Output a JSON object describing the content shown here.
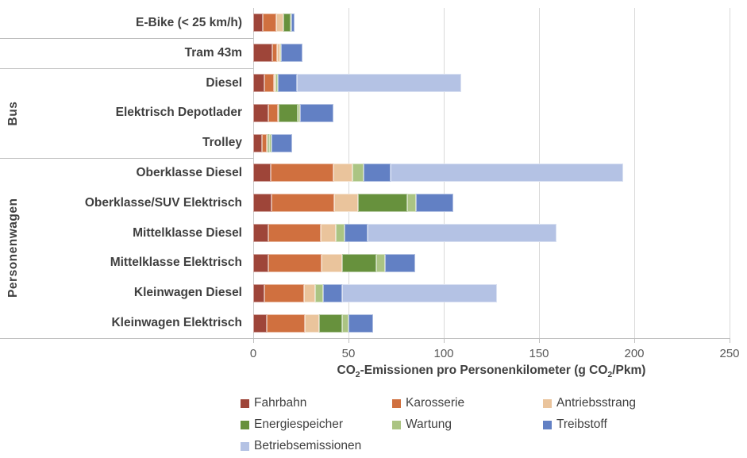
{
  "colors": {
    "background": "#FFFFFF",
    "gridline": "#D9D9D9",
    "axis_line": "#BFBFBF",
    "category_text": "#404040",
    "tick_text": "#595959"
  },
  "chart_data": {
    "type": "bar",
    "orientation": "horizontal",
    "stacked": true,
    "xlabel": "CO2-Emissionen pro Personenkilometer (g CO2/Pkm)",
    "xlabel_parts": [
      "CO",
      "2",
      "-Emissionen pro Personenkilometer (g CO",
      "2",
      "/Pkm)"
    ],
    "xlim": [
      0,
      250
    ],
    "xticks": [
      0,
      50,
      100,
      150,
      200,
      250
    ],
    "grid": "vertical",
    "legend_position": "bottom",
    "categories": [
      "E-Bike (< 25 km/h)",
      "Tram 43m",
      "Diesel",
      "Elektrisch Depotlader",
      "Trolley",
      "Oberklasse Diesel",
      "Oberklasse/SUV Elektrisch",
      "Mittelklasse Diesel",
      "Mittelklasse Elektrisch",
      "Kleinwagen Diesel",
      "Kleinwagen Elektrisch"
    ],
    "groups": [
      {
        "label": "",
        "rows": [
          0
        ]
      },
      {
        "label": "",
        "rows": [
          1
        ]
      },
      {
        "label": "Bus",
        "rows": [
          2,
          3,
          4
        ]
      },
      {
        "label": "Personenwagen",
        "rows": [
          5,
          6,
          7,
          8,
          9,
          10
        ]
      }
    ],
    "series": [
      {
        "name": "Fahrbahn",
        "color": "#9E4539",
        "values": [
          5,
          10,
          6,
          8,
          4.5,
          9,
          9.5,
          8,
          8,
          6,
          7
        ]
      },
      {
        "name": "Karosserie",
        "color": "#D0703F",
        "values": [
          7,
          2.5,
          5,
          5,
          2.5,
          33,
          33,
          27.5,
          28,
          20.5,
          20
        ]
      },
      {
        "name": "Antriebsstrang",
        "color": "#EAC49C",
        "values": [
          4,
          1.5,
          0.5,
          0.5,
          0.5,
          10,
          12.5,
          8,
          10.5,
          6,
          7.5
        ]
      },
      {
        "name": "Energiespeicher",
        "color": "#67913D",
        "values": [
          3.5,
          0,
          0,
          10,
          1,
          0,
          26,
          0,
          18,
          0,
          12
        ]
      },
      {
        "name": "Wartung",
        "color": "#ABC483",
        "values": [
          0.5,
          0.5,
          1.5,
          1,
          1,
          6,
          4.5,
          4.5,
          4.5,
          4,
          3.5
        ]
      },
      {
        "name": "Treibstoff",
        "color": "#6280C4",
        "values": [
          1.5,
          11.5,
          10,
          17.5,
          11,
          14,
          19.5,
          12,
          16,
          10,
          13
        ]
      },
      {
        "name": "Betriebsemissionen",
        "color": "#B4C2E4",
        "values": [
          0,
          0,
          86,
          0,
          0,
          122,
          0,
          99,
          0,
          81.5,
          0
        ]
      }
    ]
  }
}
